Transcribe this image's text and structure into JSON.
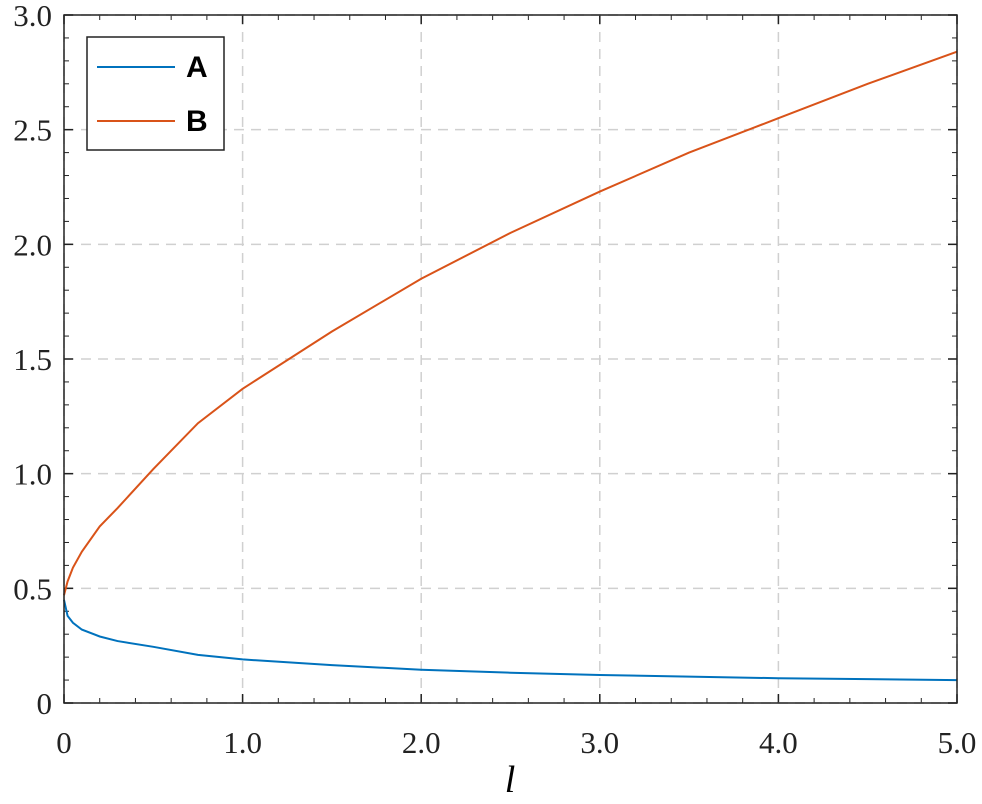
{
  "chart_data": {
    "type": "line",
    "x_label": "l",
    "x": [
      0,
      0.02,
      0.05,
      0.1,
      0.2,
      0.3,
      0.5,
      0.75,
      1,
      1.5,
      2,
      2.5,
      3,
      3.5,
      4,
      4.5,
      5
    ],
    "series": [
      {
        "name": "A",
        "color": "#0072bd",
        "values": [
          0.45,
          0.38,
          0.35,
          0.32,
          0.29,
          0.27,
          0.245,
          0.21,
          0.19,
          0.165,
          0.145,
          0.132,
          0.122,
          0.115,
          0.108,
          0.104,
          0.1
        ]
      },
      {
        "name": "B",
        "color": "#d95319",
        "values": [
          0.47,
          0.53,
          0.59,
          0.66,
          0.77,
          0.85,
          1.02,
          1.22,
          1.37,
          1.62,
          1.85,
          2.05,
          2.23,
          2.4,
          2.55,
          2.7,
          2.84
        ]
      }
    ],
    "xlim": [
      0,
      5
    ],
    "ylim": [
      0,
      3
    ],
    "xticks": [
      0,
      {
        "value": 1,
        "label": "1.0"
      },
      {
        "value": 2,
        "label": "2.0"
      },
      {
        "value": 3,
        "label": "3.0"
      },
      {
        "value": 4,
        "label": "4.0"
      },
      {
        "value": 5,
        "label": "5.0"
      }
    ],
    "yticks": [
      0,
      0.5,
      {
        "value": 1,
        "label": "1.0"
      },
      1.5,
      {
        "value": 2,
        "label": "2.0"
      },
      2.5,
      {
        "value": 3,
        "label": "3.0"
      }
    ],
    "grid": true,
    "legend": "upper-left"
  }
}
